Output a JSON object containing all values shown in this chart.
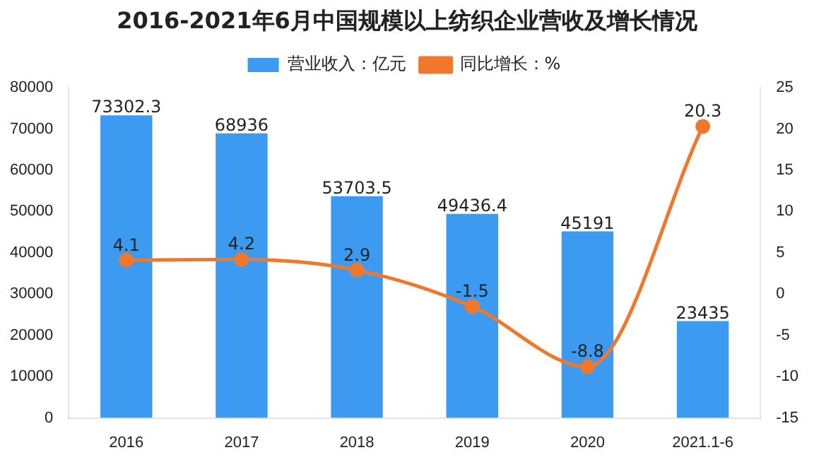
{
  "chart_data": {
    "type": "bar",
    "title": "2016-2021年6月中国规模以上纺织企业营收及增长情况",
    "categories": [
      "2016",
      "2017",
      "2018",
      "2019",
      "2020",
      "2021.1-6"
    ],
    "series": [
      {
        "name": "营业收入：亿元",
        "color": "#3c9bf0",
        "values": [
          73302.3,
          68936,
          53703.5,
          49436.4,
          45191,
          23435
        ]
      },
      {
        "name": "同比增长：%",
        "type": "line",
        "axis": "y2",
        "color": "#f0782d",
        "values": [
          4.1,
          4.2,
          2.9,
          -1.5,
          -8.8,
          20.3
        ]
      }
    ],
    "ylim": [
      0,
      80000
    ],
    "yticks": [
      0,
      10000,
      20000,
      30000,
      40000,
      50000,
      60000,
      70000,
      80000
    ],
    "y2lim": [
      -15,
      25
    ],
    "y2ticks": [
      -15,
      -10,
      -5,
      0,
      5,
      10,
      15,
      20,
      25
    ],
    "data_labels": true,
    "legend": "top",
    "grid": false,
    "marker": "circle"
  }
}
